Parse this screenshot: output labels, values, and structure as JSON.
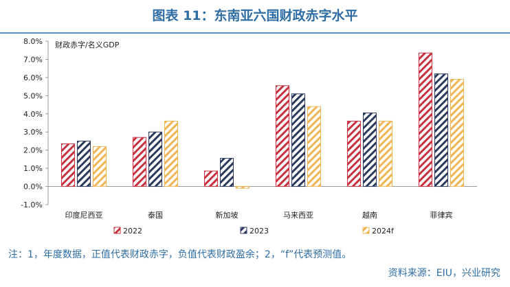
{
  "header": {
    "title": "图表 11：东南亚六国财政赤字水平"
  },
  "chart_data": {
    "type": "bar",
    "title": "图表 11：东南亚六国财政赤字水平",
    "ylabel": "财政赤字/名义GDP",
    "xlabel": "",
    "categories": [
      "印度尼西亚",
      "泰国",
      "新加坡",
      "马来西亚",
      "越南",
      "菲律宾"
    ],
    "series": [
      {
        "name": "2022",
        "values": [
          2.35,
          2.7,
          0.85,
          5.55,
          3.6,
          7.35
        ],
        "color": "#c8313e"
      },
      {
        "name": "2023",
        "values": [
          2.5,
          3.0,
          1.55,
          5.1,
          4.05,
          6.2
        ],
        "color": "#2b3a5c"
      },
      {
        "name": "2024f",
        "values": [
          2.2,
          3.6,
          -0.1,
          4.4,
          3.6,
          5.9
        ],
        "color": "#f0b553"
      }
    ],
    "ylim": [
      -1.0,
      8.0
    ],
    "yticks": [
      "-1.0%",
      "0.0%",
      "1.0%",
      "2.0%",
      "3.0%",
      "4.0%",
      "5.0%",
      "6.0%",
      "7.0%",
      "8.0%"
    ],
    "grid": false,
    "legend_position": "bottom"
  },
  "footer": {
    "note": "注：1，年度数据，正值代表财政赤字，负值代表财政盈余；2，“f”代表预测值。",
    "source": "资料来源：EIU，兴业研究"
  }
}
